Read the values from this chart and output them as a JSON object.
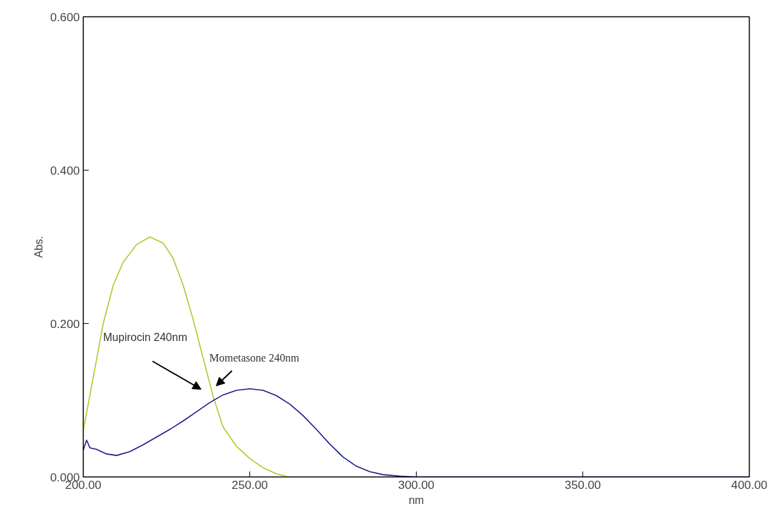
{
  "chart_data": {
    "type": "line",
    "xlabel": "nm",
    "ylabel": "Abs.",
    "xlim": [
      200,
      400
    ],
    "ylim": [
      0,
      0.6
    ],
    "xticks": [
      {
        "value": 200,
        "label": "200.00"
      },
      {
        "value": 250,
        "label": "250.00"
      },
      {
        "value": 300,
        "label": "300.00"
      },
      {
        "value": 350,
        "label": "350.00"
      },
      {
        "value": 400,
        "label": "400.00"
      }
    ],
    "yticks": [
      {
        "value": 0,
        "label": "0.000"
      },
      {
        "value": 0.2,
        "label": "0.200"
      },
      {
        "value": 0.4,
        "label": "0.400"
      },
      {
        "value": 0.6,
        "label": "0.600"
      }
    ],
    "grid": false,
    "line_style": "solid",
    "marker": "none",
    "series": [
      {
        "color": "#b8c42a",
        "x": [
          200,
          203,
          206,
          209,
          212,
          216,
          220,
          224,
          227,
          230,
          233,
          236,
          239,
          242,
          246,
          250,
          254,
          258,
          262
        ],
        "values": [
          0.06,
          0.13,
          0.2,
          0.25,
          0.28,
          0.303,
          0.313,
          0.305,
          0.285,
          0.25,
          0.205,
          0.155,
          0.105,
          0.065,
          0.04,
          0.024,
          0.012,
          0.004,
          0.0
        ]
      },
      {
        "color": "#1c1c8a",
        "x": [
          200,
          201,
          202,
          204,
          207,
          210,
          214,
          218,
          222,
          226,
          230,
          234,
          238,
          242,
          246,
          250,
          254,
          258,
          262,
          266,
          270,
          274,
          278,
          282,
          286,
          290,
          295,
          300,
          350,
          400
        ],
        "values": [
          0.035,
          0.048,
          0.038,
          0.036,
          0.03,
          0.028,
          0.033,
          0.042,
          0.052,
          0.062,
          0.073,
          0.085,
          0.097,
          0.107,
          0.113,
          0.115,
          0.113,
          0.106,
          0.095,
          0.08,
          0.062,
          0.043,
          0.026,
          0.014,
          0.007,
          0.003,
          0.001,
          0.0,
          0.0,
          0.0
        ]
      }
    ],
    "annotations": [
      "Mupirocin 240nm",
      "Mometasone 240nm"
    ]
  }
}
